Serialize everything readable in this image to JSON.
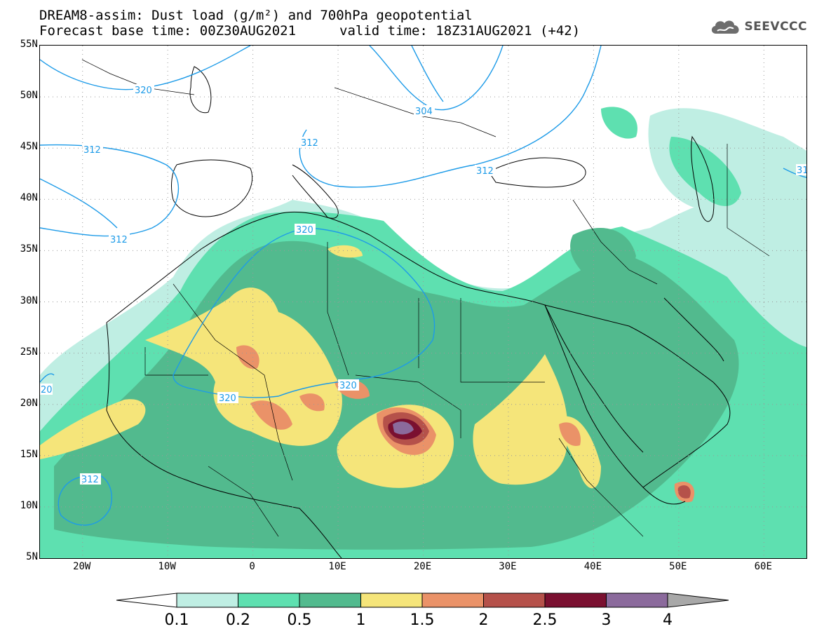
{
  "header": {
    "line1": "DREAM8-assim: Dust load (g/m²) and 700hPa geopotential",
    "base_time": "Forecast base time: 00Z30AUG2021",
    "valid_time": "valid time: 18Z31AUG2021 (+42)"
  },
  "logo": {
    "text": "SEEVCCC",
    "icon": "cloud-icon"
  },
  "axes": {
    "lat_labels": [
      "55N",
      "50N",
      "45N",
      "40N",
      "35N",
      "30N",
      "25N",
      "20N",
      "15N",
      "10N",
      "5N"
    ],
    "lon_labels": [
      "20W",
      "10W",
      "0",
      "10E",
      "20E",
      "30E",
      "40E",
      "50E",
      "60E"
    ]
  },
  "map": {
    "extent": {
      "lon": [
        -25,
        65
      ],
      "lat": [
        5,
        55
      ]
    },
    "contour_labels": [
      "320",
      "304",
      "312",
      "312",
      "312",
      "320",
      "320",
      "320",
      "312",
      "312",
      "20",
      "31"
    ]
  },
  "colorbar": {
    "tick_labels": [
      "0.1",
      "0.2",
      "0.5",
      "1",
      "1.5",
      "2",
      "2.5",
      "3",
      "4"
    ],
    "colors": [
      "#bfeee3",
      "#5ee0b0",
      "#52ba8e",
      "#f5e57a",
      "#ea9268",
      "#b5514a",
      "#7a1030",
      "#8b6a9c",
      "#a8a8a8"
    ],
    "contour_color": "#1d9be8",
    "coast_color": "#000000"
  }
}
